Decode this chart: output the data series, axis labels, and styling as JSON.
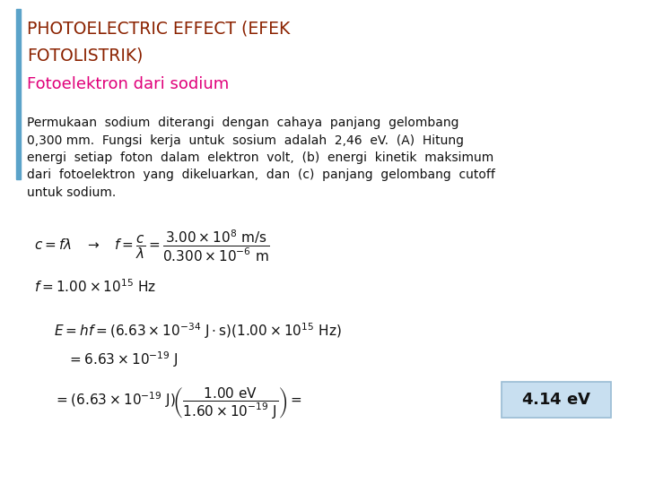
{
  "bg_color": "#ffffff",
  "title_line1": "PHOTOELECTRIC EFFECT (EFEK",
  "title_line2": "FOTOLISTRIK)",
  "title_color": "#8B2200",
  "subtitle": "Fotoelektron dari sodium",
  "subtitle_color": "#E0007A",
  "left_bar_color": "#5BA3C9",
  "highlight_color": "#C8DFF0",
  "highlight_edge": "#9ABCD4",
  "result_text": "4.14 eV",
  "body_lines": [
    "Permukaan  sodium  diterangi  dengan  cahaya  panjang  gelombang",
    "0,300 mm.  Fungsi  kerja  untuk  sosium  adalah  2,46  eV.  (A)  Hitung",
    "energi  setiap  foton  dalam  elektron  volt,  (b)  energi  kinetik  maksimum",
    "dari  fotoelektron  yang  dikeluarkan,  dan  (c)  panjang  gelombang  cutoff",
    "untuk sodium."
  ]
}
